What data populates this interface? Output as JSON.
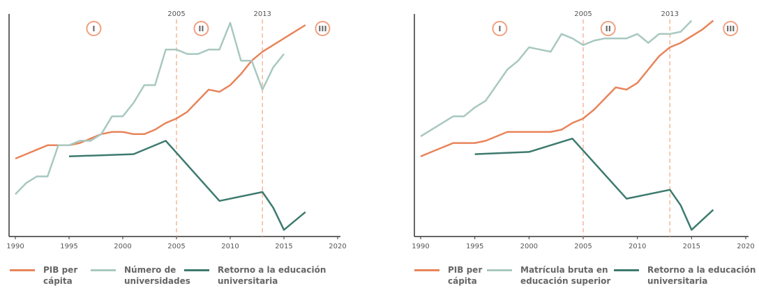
{
  "chart_data": [
    {
      "type": "line",
      "xlim": [
        1990,
        2020
      ],
      "ylim": [
        0,
        100
      ],
      "xticks": [
        1990,
        1995,
        2000,
        2005,
        2010,
        2015,
        2020
      ],
      "vlines": [
        2005,
        2013
      ],
      "phases": [
        "I",
        "II",
        "III"
      ],
      "series": [
        {
          "name": "PIB per cápita",
          "color": "#e8845a",
          "x": [
            1990,
            1991,
            1992,
            1993,
            1994,
            1995,
            1996,
            1997,
            1998,
            1999,
            2000,
            2001,
            2002,
            2003,
            2004,
            2005,
            2006,
            2007,
            2008,
            2009,
            2010,
            2011,
            2012,
            2013,
            2014,
            2015,
            2016,
            2017
          ],
          "values": [
            35,
            37,
            39,
            41,
            41,
            41,
            42,
            44,
            46,
            47,
            47,
            46,
            46,
            48,
            51,
            53,
            56,
            61,
            66,
            65,
            68,
            73,
            79,
            83,
            86,
            89,
            92,
            95
          ]
        },
        {
          "name": "Número de universidades",
          "color": "#a8c8c0",
          "x": [
            1990,
            1991,
            1992,
            1993,
            1994,
            1995,
            1996,
            1997,
            1998,
            1999,
            2000,
            2001,
            2002,
            2003,
            2004,
            2005,
            2006,
            2007,
            2008,
            2009,
            2010,
            2011,
            2012,
            2013,
            2014,
            2015
          ],
          "values": [
            19,
            24,
            27,
            27,
            41,
            41,
            43,
            43,
            46,
            54,
            54,
            60,
            68,
            68,
            84,
            84,
            82,
            82,
            84,
            84,
            96,
            79,
            79,
            66,
            76,
            82
          ]
        },
        {
          "name": "Retorno a la educación universitaria",
          "color": "#3d7a6e",
          "x": [
            1995,
            2001,
            2004,
            2009,
            2013,
            2014,
            2015,
            2017
          ],
          "values": [
            36,
            37,
            43,
            16,
            20,
            13,
            3,
            11
          ]
        }
      ]
    },
    {
      "type": "line",
      "xlim": [
        1990,
        2020
      ],
      "ylim": [
        0,
        100
      ],
      "xticks": [
        1990,
        1995,
        2000,
        2005,
        2010,
        2015,
        2020
      ],
      "vlines": [
        2005,
        2013
      ],
      "phases": [
        "I",
        "II",
        "III"
      ],
      "series": [
        {
          "name": "PIB per cápita",
          "color": "#e8845a",
          "x": [
            1990,
            1991,
            1992,
            1993,
            1994,
            1995,
            1996,
            1997,
            1998,
            1999,
            2000,
            2001,
            2002,
            2003,
            2004,
            2005,
            2006,
            2007,
            2008,
            2009,
            2010,
            2011,
            2012,
            2013,
            2014,
            2015,
            2016,
            2017
          ],
          "values": [
            36,
            38,
            40,
            42,
            42,
            42,
            43,
            45,
            47,
            47,
            47,
            47,
            47,
            48,
            51,
            53,
            57,
            62,
            67,
            66,
            69,
            75,
            81,
            85,
            87,
            90,
            93,
            97
          ]
        },
        {
          "name": "Matrícula bruta en educación superior",
          "color": "#a8c8c0",
          "x": [
            1990,
            1991,
            1992,
            1993,
            1994,
            1995,
            1996,
            1997,
            1998,
            1999,
            2000,
            2001,
            2002,
            2003,
            2004,
            2005,
            2006,
            2007,
            2008,
            2009,
            2010,
            2011,
            2012,
            2013,
            2014,
            2015
          ],
          "values": [
            45,
            48,
            51,
            54,
            54,
            58,
            61,
            68,
            75,
            79,
            85,
            84,
            83,
            91,
            89,
            86,
            88,
            89,
            89,
            89,
            91,
            87,
            91,
            91,
            92,
            97
          ]
        },
        {
          "name": "Retorno a la educación universitaria",
          "color": "#3d7a6e",
          "x": [
            1995,
            2000,
            2004,
            2009,
            2013,
            2014,
            2015,
            2017
          ],
          "values": [
            37,
            38,
            44,
            17,
            21,
            14,
            3,
            12
          ]
        }
      ]
    }
  ]
}
